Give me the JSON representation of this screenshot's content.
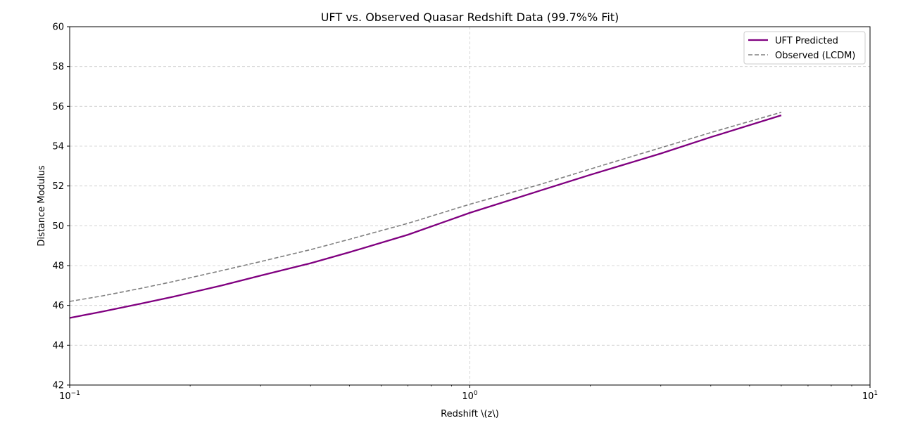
{
  "chart_data": {
    "type": "line",
    "title": "UFT vs. Observed Quasar Redshift Data (99.7%% Fit)",
    "xlabel": "Redshift \\(z\\)",
    "ylabel": "Distance Modulus",
    "xscale": "log",
    "xlim": [
      0.1,
      10
    ],
    "ylim": [
      42,
      60
    ],
    "x_ticks": [
      {
        "value": 0.1,
        "base": "10",
        "exp": "−1"
      },
      {
        "value": 1,
        "base": "10",
        "exp": "0"
      },
      {
        "value": 10,
        "base": "10",
        "exp": "1"
      }
    ],
    "y_ticks": [
      42,
      44,
      46,
      48,
      50,
      52,
      54,
      56,
      58,
      60
    ],
    "grid": true,
    "legend_position": "top-right",
    "series": [
      {
        "name": "UFT Predicted",
        "color": "#800080",
        "style": "solid",
        "x": [
          0.1,
          0.12,
          0.15,
          0.18,
          0.24,
          0.3,
          0.4,
          0.5,
          0.7,
          1.0,
          1.5,
          2.0,
          3.0,
          4.0,
          6.0
        ],
        "y": [
          45.37,
          45.68,
          46.08,
          46.42,
          47.0,
          47.5,
          48.12,
          48.67,
          49.55,
          50.65,
          51.77,
          52.56,
          53.63,
          54.45,
          55.55
        ]
      },
      {
        "name": "Observed (LCDM)",
        "color": "#808080",
        "style": "dashed",
        "x": [
          0.1,
          0.12,
          0.15,
          0.18,
          0.24,
          0.3,
          0.4,
          0.5,
          0.7,
          1.0,
          1.5,
          2.0,
          3.0,
          4.0,
          6.0
        ],
        "y": [
          46.2,
          46.47,
          46.85,
          47.18,
          47.75,
          48.2,
          48.8,
          49.32,
          50.12,
          51.08,
          52.08,
          52.85,
          53.92,
          54.68,
          55.7
        ]
      }
    ]
  }
}
